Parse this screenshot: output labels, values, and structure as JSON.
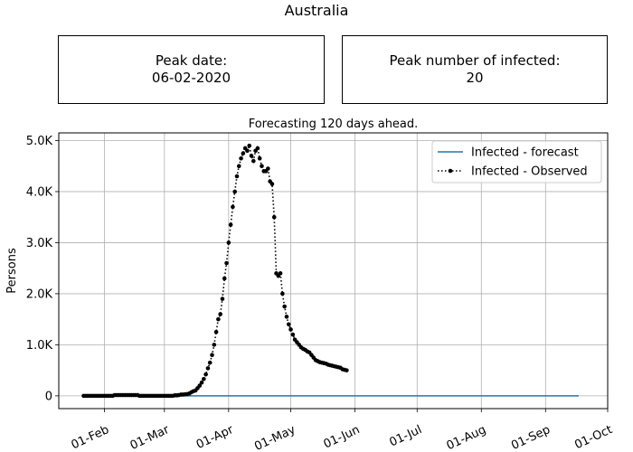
{
  "title": "Australia",
  "peak_date": {
    "label": "Peak date:",
    "value": "06-02-2020"
  },
  "peak_infected": {
    "label": "Peak number of infected:",
    "value": "20"
  },
  "chart_data": {
    "type": "line",
    "title": "Forecasting 120 days ahead.",
    "xlabel": "",
    "ylabel": "Persons",
    "xlim": [
      "2020-01-10",
      "2020-10-01"
    ],
    "ylim": [
      -250,
      5150
    ],
    "grid": true,
    "legend_position": "top-right",
    "x_ticks": [
      "2020-02-01",
      "2020-03-01",
      "2020-04-01",
      "2020-05-01",
      "2020-06-01",
      "2020-07-01",
      "2020-08-01",
      "2020-09-01",
      "2020-10-01"
    ],
    "x_tick_labels": [
      "01-Feb",
      "01-Mar",
      "01-Apr",
      "01-May",
      "01-Jun",
      "01-Jul",
      "01-Aug",
      "01-Sep",
      "01-Oct"
    ],
    "y_ticks": [
      0,
      1000,
      2000,
      3000,
      4000,
      5000
    ],
    "y_tick_labels": [
      "0",
      "1.0K",
      "2.0K",
      "3.0K",
      "4.0K",
      "5.0K"
    ],
    "series": [
      {
        "name": "Infected - forecast",
        "color": "#1f77b4",
        "style": "solid",
        "x": [
          "2020-01-22",
          "2020-09-17"
        ],
        "y": [
          0,
          0
        ]
      },
      {
        "name": "Infected - Observed",
        "color": "#000000",
        "style": "dotted-markers",
        "start": "2020-01-22",
        "step_days": 1,
        "y": [
          0,
          0,
          0,
          0,
          0,
          0,
          0,
          0,
          0,
          0,
          0,
          0,
          0,
          0,
          0,
          15,
          15,
          15,
          15,
          15,
          15,
          15,
          15,
          15,
          15,
          15,
          15,
          0,
          0,
          0,
          0,
          0,
          0,
          0,
          0,
          0,
          0,
          0,
          0,
          0,
          0,
          0,
          0,
          0,
          10,
          10,
          15,
          25,
          25,
          30,
          35,
          45,
          70,
          90,
          105,
          150,
          200,
          260,
          330,
          420,
          540,
          650,
          800,
          1000,
          1250,
          1500,
          1600,
          1900,
          2300,
          2600,
          3000,
          3350,
          3700,
          4000,
          4300,
          4500,
          4650,
          4750,
          4850,
          4800,
          4900,
          4700,
          4600,
          4800,
          4850,
          4650,
          4500,
          4400,
          4400,
          4450,
          4200,
          4150,
          3500,
          2400,
          2350,
          2400,
          2000,
          1750,
          1550,
          1400,
          1300,
          1200,
          1100,
          1050,
          1000,
          950,
          920,
          900,
          870,
          850,
          800,
          750,
          700,
          680,
          660,
          650,
          640,
          630,
          610,
          600,
          590,
          580,
          570,
          560,
          550,
          520,
          510,
          500
        ]
      }
    ]
  }
}
